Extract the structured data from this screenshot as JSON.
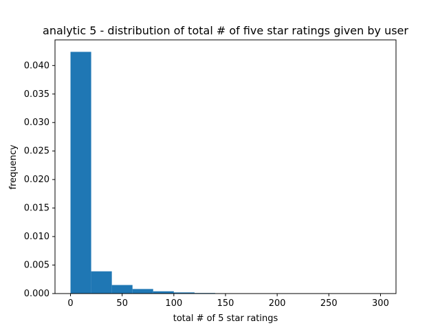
{
  "chart_data": {
    "type": "bar",
    "title": "analytic 5 - distribution of total # of five star ratings given by user",
    "xlabel": "total # of 5 star ratings",
    "ylabel": "frequency",
    "xlim": [
      -15,
      315
    ],
    "ylim": [
      0,
      0.0445
    ],
    "x_ticks": [
      {
        "value": 0,
        "label": "0"
      },
      {
        "value": 50,
        "label": "50"
      },
      {
        "value": 100,
        "label": "100"
      },
      {
        "value": 150,
        "label": "150"
      },
      {
        "value": 200,
        "label": "200"
      },
      {
        "value": 250,
        "label": "250"
      },
      {
        "value": 300,
        "label": "300"
      }
    ],
    "y_ticks": [
      {
        "value": 0.0,
        "label": "0.000"
      },
      {
        "value": 0.005,
        "label": "0.005"
      },
      {
        "value": 0.01,
        "label": "0.010"
      },
      {
        "value": 0.015,
        "label": "0.015"
      },
      {
        "value": 0.02,
        "label": "0.020"
      },
      {
        "value": 0.025,
        "label": "0.025"
      },
      {
        "value": 0.03,
        "label": "0.030"
      },
      {
        "value": 0.035,
        "label": "0.035"
      },
      {
        "value": 0.04,
        "label": "0.040"
      }
    ],
    "bins": [
      {
        "start": 0,
        "end": 20,
        "value": 0.0424
      },
      {
        "start": 20,
        "end": 40,
        "value": 0.0039
      },
      {
        "start": 40,
        "end": 60,
        "value": 0.0015
      },
      {
        "start": 60,
        "end": 80,
        "value": 0.0008
      },
      {
        "start": 80,
        "end": 100,
        "value": 0.0004
      },
      {
        "start": 100,
        "end": 120,
        "value": 0.0002
      },
      {
        "start": 120,
        "end": 140,
        "value": 0.0001
      },
      {
        "start": 140,
        "end": 160,
        "value": 5e-05
      },
      {
        "start": 160,
        "end": 180,
        "value": 5e-05
      },
      {
        "start": 180,
        "end": 200,
        "value": 0.0
      },
      {
        "start": 200,
        "end": 220,
        "value": 0.0
      },
      {
        "start": 220,
        "end": 240,
        "value": 0.0
      },
      {
        "start": 240,
        "end": 260,
        "value": 5e-05
      },
      {
        "start": 260,
        "end": 280,
        "value": 0.0
      },
      {
        "start": 280,
        "end": 300,
        "value": 0.0
      }
    ],
    "bar_color": "#1f77b4",
    "grid": false,
    "legend": "none"
  }
}
